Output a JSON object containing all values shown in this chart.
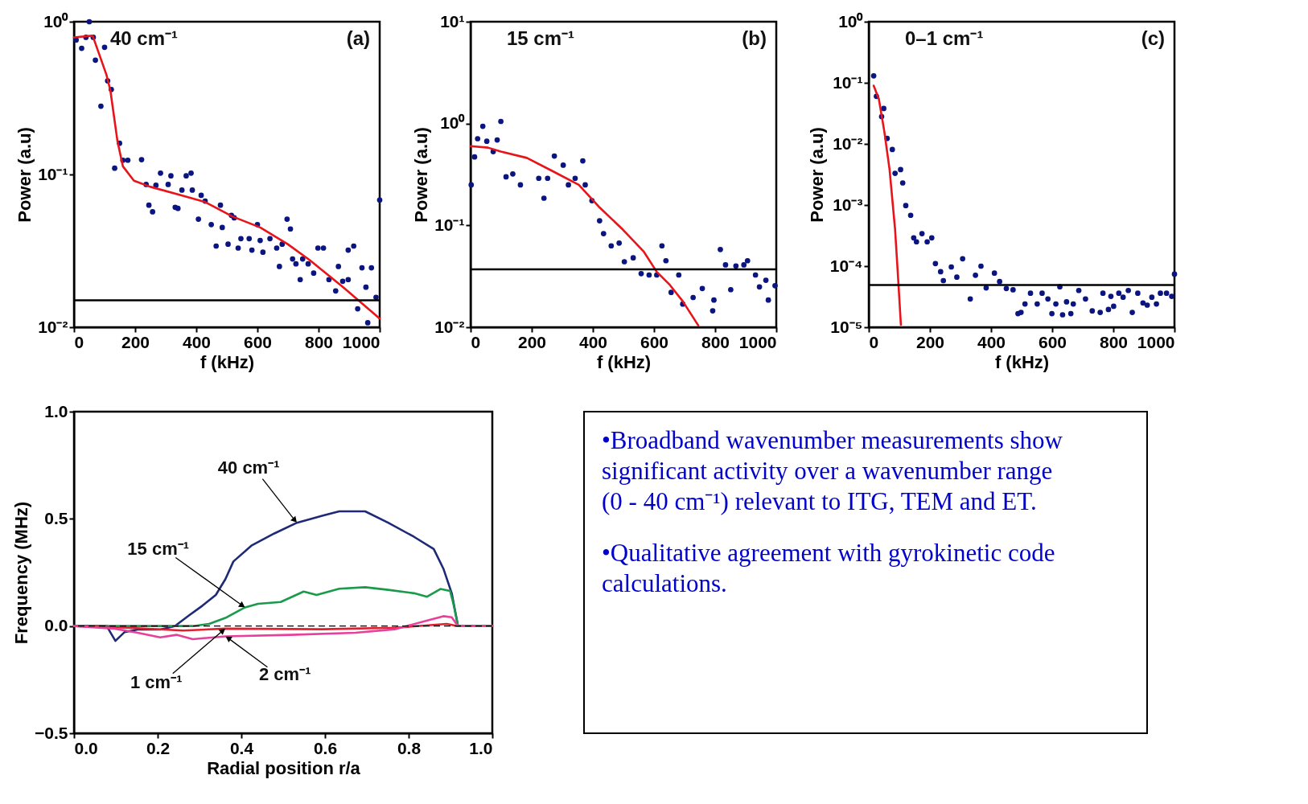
{
  "chart_data": [
    {
      "type": "scatter",
      "xlabel": "f (kHz)",
      "ylabel": "Power (a.u)",
      "annotations": [
        "40 cm⁻¹",
        "(a)"
      ],
      "log": "y",
      "xlim": [
        0,
        1000
      ],
      "ylim": [
        0.01,
        1
      ],
      "xticks": [
        0,
        200,
        400,
        600,
        800,
        1000
      ],
      "yticks": [
        {
          "value": 0.01,
          "label": "10⁻²"
        },
        {
          "value": 0.1,
          "label": "10⁻¹"
        },
        {
          "value": 1,
          "label": "10⁰"
        }
      ],
      "series": [
        {
          "type": "scatter",
          "marker": "circle",
          "color": "#0b1580",
          "x": [
            7,
            25,
            39,
            50,
            63,
            70,
            88,
            100,
            110,
            122,
            133,
            149,
            160,
            176,
            221,
            236,
            245,
            257,
            268,
            283,
            308,
            317,
            331,
            340,
            353,
            367,
            383,
            387,
            407,
            416,
            429,
            449,
            465,
            479,
            485,
            504,
            515,
            524,
            537,
            546,
            573,
            582,
            600,
            609,
            618,
            641,
            663,
            672,
            681,
            697,
            708,
            715,
            726,
            740,
            748,
            766,
            784,
            798,
            816,
            834,
            856,
            865,
            879,
            897,
            897,
            915,
            928,
            942,
            955,
            961,
            973,
            988,
            1000
          ],
          "values": [
            0.76,
            0.67,
            0.79,
            1.0,
            0.79,
            0.56,
            0.28,
            0.68,
            0.41,
            0.36,
            0.11,
            0.16,
            0.124,
            0.124,
            0.125,
            0.086,
            0.063,
            0.057,
            0.085,
            0.102,
            0.086,
            0.098,
            0.061,
            0.06,
            0.079,
            0.098,
            0.102,
            0.079,
            0.051,
            0.073,
            0.067,
            0.047,
            0.034,
            0.063,
            0.045,
            0.035,
            0.054,
            0.052,
            0.033,
            0.038,
            0.038,
            0.032,
            0.047,
            0.037,
            0.031,
            0.038,
            0.033,
            0.025,
            0.035,
            0.051,
            0.044,
            0.028,
            0.026,
            0.0205,
            0.028,
            0.026,
            0.0226,
            0.033,
            0.033,
            0.0205,
            0.0173,
            0.025,
            0.02,
            0.0205,
            0.032,
            0.034,
            0.0132,
            0.0245,
            0.0183,
            0.0107,
            0.0245,
            0.0157,
            0.068
          ]
        },
        {
          "type": "line",
          "color": "#e8141a",
          "x": [
            0,
            61,
            106,
            119,
            142,
            160,
            196,
            250,
            340,
            429,
            519,
            609,
            699,
            771,
            879,
            1000
          ],
          "values": [
            0.79,
            0.81,
            0.45,
            0.355,
            0.166,
            0.113,
            0.091,
            0.083,
            0.074,
            0.066,
            0.053,
            0.045,
            0.035,
            0.0275,
            0.0184,
            0.0114
          ]
        }
      ],
      "ref_lines": [
        {
          "axis": "y",
          "value": 0.015,
          "color": "#000000"
        }
      ]
    },
    {
      "type": "scatter",
      "xlabel": "f (kHz)",
      "ylabel": "Power (a.u)",
      "annotations": [
        "15 cm⁻¹",
        "(b)"
      ],
      "log": "y",
      "xlim": [
        0,
        1000
      ],
      "ylim": [
        0.01,
        10
      ],
      "xticks": [
        0,
        200,
        400,
        600,
        800,
        1000
      ],
      "yticks": [
        {
          "value": 0.01,
          "label": "10⁻²"
        },
        {
          "value": 0.1,
          "label": "10⁻¹"
        },
        {
          "value": 1,
          "label": "10⁰"
        },
        {
          "value": 10,
          "label": "10¹"
        }
      ],
      "series": [
        {
          "type": "scatter",
          "marker": "circle",
          "color": "#0b1580",
          "x": [
            2,
            13,
            23,
            40,
            53,
            74,
            87,
            99,
            116,
            138,
            163,
            223,
            240,
            252,
            274,
            303,
            320,
            342,
            367,
            375,
            397,
            422,
            435,
            460,
            486,
            503,
            532,
            558,
            584,
            609,
            626,
            639,
            656,
            681,
            694,
            728,
            758,
            792,
            796,
            817,
            834,
            851,
            868,
            894,
            906,
            932,
            945,
            966,
            974,
            996
          ],
          "values": [
            0.25,
            0.47,
            0.71,
            0.94,
            0.67,
            0.53,
            0.69,
            1.05,
            0.3,
            0.32,
            0.25,
            0.29,
            0.185,
            0.29,
            0.48,
            0.39,
            0.25,
            0.29,
            0.43,
            0.25,
            0.175,
            0.111,
            0.083,
            0.063,
            0.067,
            0.044,
            0.048,
            0.0336,
            0.0326,
            0.0326,
            0.063,
            0.045,
            0.022,
            0.0326,
            0.0169,
            0.0196,
            0.024,
            0.0145,
            0.0185,
            0.058,
            0.041,
            0.0234,
            0.04,
            0.041,
            0.045,
            0.0326,
            0.0249,
            0.0289,
            0.0185,
            0.0256
          ]
        },
        {
          "type": "line",
          "color": "#e8141a",
          "x": [
            0,
            57,
            99,
            184,
            269,
            354,
            422,
            498,
            567,
            609,
            652,
            694,
            745
          ],
          "values": [
            0.6,
            0.58,
            0.53,
            0.46,
            0.34,
            0.25,
            0.15,
            0.091,
            0.055,
            0.035,
            0.026,
            0.018,
            0.0104
          ]
        }
      ],
      "ref_lines": [
        {
          "axis": "y",
          "value": 0.037,
          "color": "#000000"
        }
      ]
    },
    {
      "type": "scatter",
      "xlabel": "f (kHz)",
      "ylabel": "Power (a.u)",
      "annotations": [
        "0–1 cm⁻¹",
        "(c)"
      ],
      "log": "y",
      "xlim": [
        0,
        1000
      ],
      "ylim": [
        1e-05,
        1
      ],
      "xticks": [
        0,
        200,
        400,
        600,
        800,
        1000
      ],
      "yticks": [
        {
          "value": 1e-05,
          "label": "10⁻⁵"
        },
        {
          "value": 0.0001,
          "label": "10⁻⁴"
        },
        {
          "value": 0.001,
          "label": "10⁻³"
        },
        {
          "value": 0.01,
          "label": "10⁻²"
        },
        {
          "value": 0.1,
          "label": "10⁻¹"
        },
        {
          "value": 1,
          "label": "10⁰"
        }
      ],
      "series": [
        {
          "type": "scatter",
          "marker": "circle",
          "color": "#0b1580",
          "x": [
            16,
            25,
            42,
            49,
            60,
            77,
            86,
            104,
            111,
            121,
            137,
            147,
            156,
            174,
            191,
            206,
            218,
            235,
            244,
            270,
            288,
            307,
            332,
            349,
            367,
            384,
            411,
            428,
            450,
            472,
            488,
            498,
            511,
            529,
            551,
            567,
            586,
            599,
            612,
            625,
            634,
            647,
            661,
            669,
            687,
            709,
            731,
            757,
            766,
            784,
            792,
            801,
            818,
            832,
            849,
            862,
            880,
            897,
            911,
            926,
            941,
            954,
            974,
            991,
            1000
          ],
          "values": [
            0.13,
            0.06,
            0.028,
            0.038,
            0.0123,
            0.0081,
            0.0033,
            0.0038,
            0.0023,
            0.00098,
            0.00068,
            0.00029,
            0.00025,
            0.00034,
            0.00025,
            0.00029,
            0.00011,
            8.1e-05,
            5.8e-05,
            9.7e-05,
            6.6e-05,
            0.000132,
            2.9e-05,
            7.1e-05,
            0.0001,
            4.4e-05,
            7.7e-05,
            5.6e-05,
            4.3e-05,
            4.1e-05,
            1.67e-05,
            1.75e-05,
            2.4e-05,
            3.6e-05,
            2.4e-05,
            3.6e-05,
            2.9e-05,
            1.67e-05,
            2.4e-05,
            4.6e-05,
            1.6e-05,
            2.6e-05,
            1.67e-05,
            2.4e-05,
            4e-05,
            2.9e-05,
            1.85e-05,
            1.75e-05,
            3.6e-05,
            1.95e-05,
            3.2e-05,
            2.2e-05,
            3.6e-05,
            3.1e-05,
            4e-05,
            1.75e-05,
            3.6e-05,
            2.5e-05,
            2.3e-05,
            3.1e-05,
            2.4e-05,
            3.6e-05,
            3.6e-05,
            3.2e-05,
            7.4e-05
          ]
        },
        {
          "type": "line",
          "color": "#e8141a",
          "x": [
            16,
            33,
            51,
            68,
            86,
            96,
            105
          ],
          "values": [
            0.09,
            0.054,
            0.0158,
            0.0038,
            0.0004,
            6.3e-05,
            1.1e-05
          ]
        }
      ],
      "ref_lines": [
        {
          "axis": "y",
          "value": 4.9e-05,
          "color": "#000000"
        }
      ]
    },
    {
      "type": "line",
      "xlabel": "Radial position r/a",
      "ylabel": "Frequency (MHz)",
      "xlim": [
        0,
        1
      ],
      "ylim": [
        -0.5,
        1
      ],
      "xticks": [
        {
          "value": 0,
          "label": "0.0"
        },
        {
          "value": 0.2,
          "label": "0.2"
        },
        {
          "value": 0.4,
          "label": "0.4"
        },
        {
          "value": 0.6,
          "label": "0.6"
        },
        {
          "value": 0.8,
          "label": "0.8"
        },
        {
          "value": 1,
          "label": "1.0"
        }
      ],
      "yticks": [
        {
          "value": -0.5,
          "label": "−0.5"
        },
        {
          "value": 0,
          "label": "0.0"
        },
        {
          "value": 0.5,
          "label": "0.5"
        },
        {
          "value": 1,
          "label": "1.0"
        }
      ],
      "series": [
        {
          "name": "40 cm⁻¹",
          "color": "#1e2a78",
          "x": [
            0,
            0.078,
            0.099,
            0.121,
            0.152,
            0.206,
            0.241,
            0.276,
            0.307,
            0.339,
            0.362,
            0.381,
            0.424,
            0.479,
            0.533,
            0.595,
            0.634,
            0.696,
            0.751,
            0.813,
            0.86,
            0.883,
            0.903,
            0.918,
            1.0
          ],
          "values": [
            0,
            0,
            -0.069,
            -0.028,
            -0.016,
            -0.016,
            0,
            0.051,
            0.095,
            0.145,
            0.219,
            0.301,
            0.375,
            0.432,
            0.482,
            0.515,
            0.535,
            0.535,
            0.482,
            0.416,
            0.359,
            0.268,
            0.153,
            0,
            0
          ]
        },
        {
          "name": "15 cm⁻¹",
          "color": "#1a9a4a",
          "x": [
            0,
            0.284,
            0.323,
            0.362,
            0.409,
            0.44,
            0.494,
            0.549,
            0.58,
            0.634,
            0.696,
            0.751,
            0.813,
            0.844,
            0.876,
            0.899,
            0.907,
            0.918,
            1.0
          ],
          "values": [
            0,
            0,
            0.01,
            0.038,
            0.087,
            0.104,
            0.112,
            0.161,
            0.145,
            0.174,
            0.181,
            0.169,
            0.153,
            0.137,
            0.173,
            0.164,
            0.104,
            0,
            0
          ]
        },
        {
          "name": "1 cm⁻¹",
          "color": "#e02030",
          "x": [
            0,
            0.128,
            0.261,
            0.362,
            0.595,
            0.767,
            0.891,
            0.918,
            1.0
          ],
          "values": [
            0,
            -0.008,
            -0.021,
            -0.012,
            -0.015,
            -0.008,
            0.01,
            0,
            0
          ]
        },
        {
          "name": "2 cm⁻¹",
          "color": "#e8409a",
          "x": [
            0,
            0.097,
            0.152,
            0.206,
            0.245,
            0.284,
            0.362,
            0.518,
            0.673,
            0.767,
            0.852,
            0.883,
            0.903,
            0.918,
            1.0
          ],
          "values": [
            0,
            -0.012,
            -0.031,
            -0.053,
            -0.041,
            -0.061,
            -0.048,
            -0.041,
            -0.031,
            -0.015,
            0.03,
            0.046,
            0.041,
            0,
            0
          ]
        }
      ],
      "ref_lines": [
        {
          "axis": "y",
          "value": 0,
          "color": "#000000",
          "line_style": "dashed"
        }
      ]
    },
    {
      "type": "other",
      "annotations": [
        "•Broadband wavenumber measurements show significant activity over a wavenumber range (0 - 40 cm⁻¹) relevant to ITG, TEM and ET.",
        "•Qualitative agreement with gyrokinetic code calculations."
      ]
    }
  ]
}
